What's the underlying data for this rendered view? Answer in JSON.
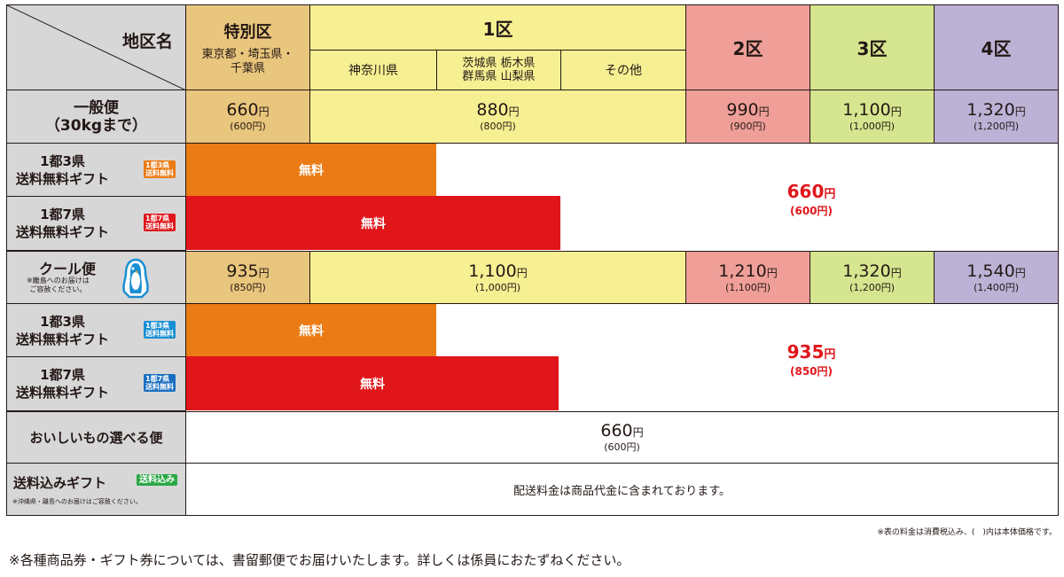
{
  "header": {
    "area_name": "地区名",
    "special_zone": "特別区",
    "special_prefs": "東京都・埼玉県・\n千葉県",
    "zone1": "1区",
    "zone1_kanagawa": "神奈川県",
    "zone1_kanto": "茨城県 栃木県\n群馬県 山梨県",
    "zone1_other": "その他",
    "zone2": "2区",
    "zone3": "3区",
    "zone4": "4区"
  },
  "rows": {
    "general": {
      "label": "一般便\n（30kgまで）",
      "special": "660",
      "special_tax": "(600円)",
      "zone1": "880",
      "zone1_tax": "(800円)",
      "zone2": "990",
      "zone2_tax": "(900円)",
      "zone3": "1,100",
      "zone3_tax": "(1,000円)",
      "zone4": "1,320",
      "zone4_tax": "(1,200円)"
    },
    "gift3_general": {
      "label": "1都3県\n送料無料ギフト",
      "badge": "1都3県\n送料無料",
      "free": "無料"
    },
    "gift7_general": {
      "label": "1都7県\n送料無料ギフト",
      "badge": "1都7県\n送料無料",
      "free": "無料"
    },
    "general_other_price": "660",
    "general_other_price_tax": "(600円)",
    "cool": {
      "label": "クール便",
      "note": "※離島へのお届けは\nご容赦ください。",
      "special": "935",
      "special_tax": "(850円)",
      "zone1": "1,100",
      "zone1_tax": "(1,000円)",
      "zone2": "1,210",
      "zone2_tax": "(1,100円)",
      "zone3": "1,320",
      "zone3_tax": "(1,200円)",
      "zone4": "1,540",
      "zone4_tax": "(1,400円)"
    },
    "gift3_cool": {
      "label": "1都3県\n送料無料ギフト",
      "badge": "1都3県\n送料無料",
      "free": "無料"
    },
    "gift7_cool": {
      "label": "1都7県\n送料無料ギフト",
      "badge": "1都7県\n送料無料",
      "free": "無料"
    },
    "cool_other_price": "935",
    "cool_other_price_tax": "(850円)",
    "selectable": {
      "label": "おいしいもの選べる便",
      "price": "660",
      "price_tax": "(600円)"
    },
    "included": {
      "label": "送料込みギフト",
      "badge": "送料込み",
      "note": "※沖縄県・離島へのお届けはご容赦ください。",
      "text": "配送料金は商品代金に含まれております。"
    }
  },
  "yen": "円",
  "tax_note": "※表の料金は消費税込み、(　)内は本体価格です。",
  "footer_note": "※各種商品券・ギフト券については、書留郵便でお届けいたします。詳しくは係員におたずねください。",
  "colors": {
    "special": "#e9c67d",
    "zone1": "#f6f093",
    "zone2": "#ef9f98",
    "zone3": "#d6e58f",
    "zone4": "#bcb2d6",
    "orange": "#eb7b15",
    "red": "#e0161b",
    "header_grey": "#d7d7d8",
    "badge_blue": "#1a8fd3",
    "badge_green": "#2aa845"
  },
  "icons": {
    "penguin": "penguin-icon"
  }
}
